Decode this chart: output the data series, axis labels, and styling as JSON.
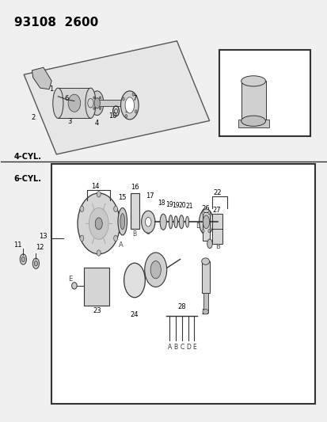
{
  "title": "93108  2600",
  "figsize": [
    4.14,
    5.33
  ],
  "dpi": 100,
  "label_4cyl": "4-CYL.",
  "label_6cyl": "6-CYL.",
  "line_color": "#333333",
  "bg_color": "#f0f0f0"
}
